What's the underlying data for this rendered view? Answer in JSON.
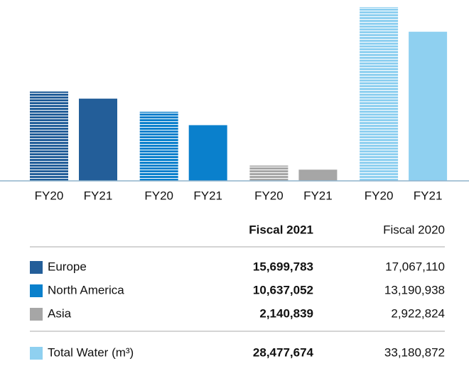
{
  "chart_data": {
    "type": "bar",
    "categories": [
      "Europe",
      "North America",
      "Asia",
      "Total Water (m³)"
    ],
    "colors": [
      "#235e99",
      "#0a80cc",
      "#a6a6a6",
      "#8fd0f0"
    ],
    "series": [
      {
        "name": "Fiscal 2020",
        "label": "FY20",
        "striped": true,
        "values": [
          17067110,
          13190938,
          2922824,
          33180872
        ],
        "value_labels": [
          "17,067,110",
          "13,190,938",
          "2,922,824",
          "33,180,872"
        ]
      },
      {
        "name": "Fiscal 2021",
        "label": "FY21",
        "striped": false,
        "values": [
          15699783,
          10637052,
          2140839,
          28477674
        ],
        "value_labels": [
          "15,699,783",
          "10,637,052",
          "2,140,839",
          "28,477,674"
        ]
      }
    ]
  }
}
